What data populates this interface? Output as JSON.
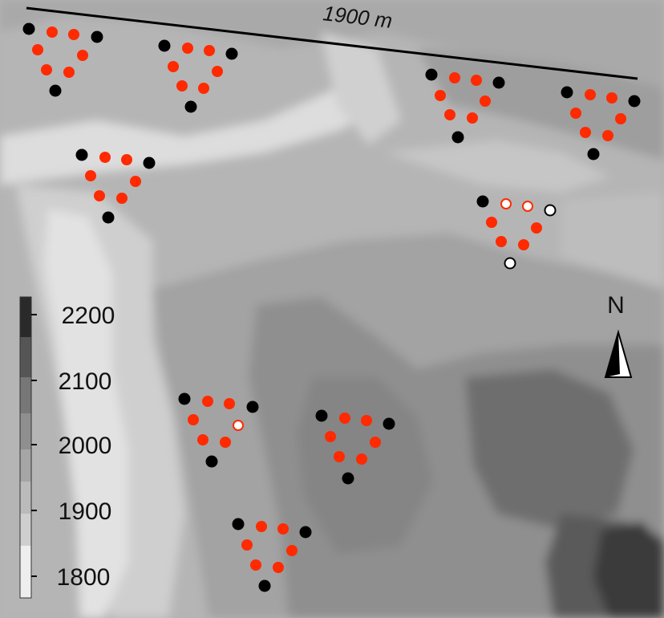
{
  "scale_bar": {
    "label": "1900 m"
  },
  "north_arrow": {
    "label": "N"
  },
  "legend": {
    "ticks": [
      "2200",
      "2100",
      "2000",
      "1900",
      "1800"
    ]
  },
  "marker_colors": {
    "corner": "#000000",
    "sensor": "#ff2a00",
    "hollow_fill": "#ffffff"
  }
}
